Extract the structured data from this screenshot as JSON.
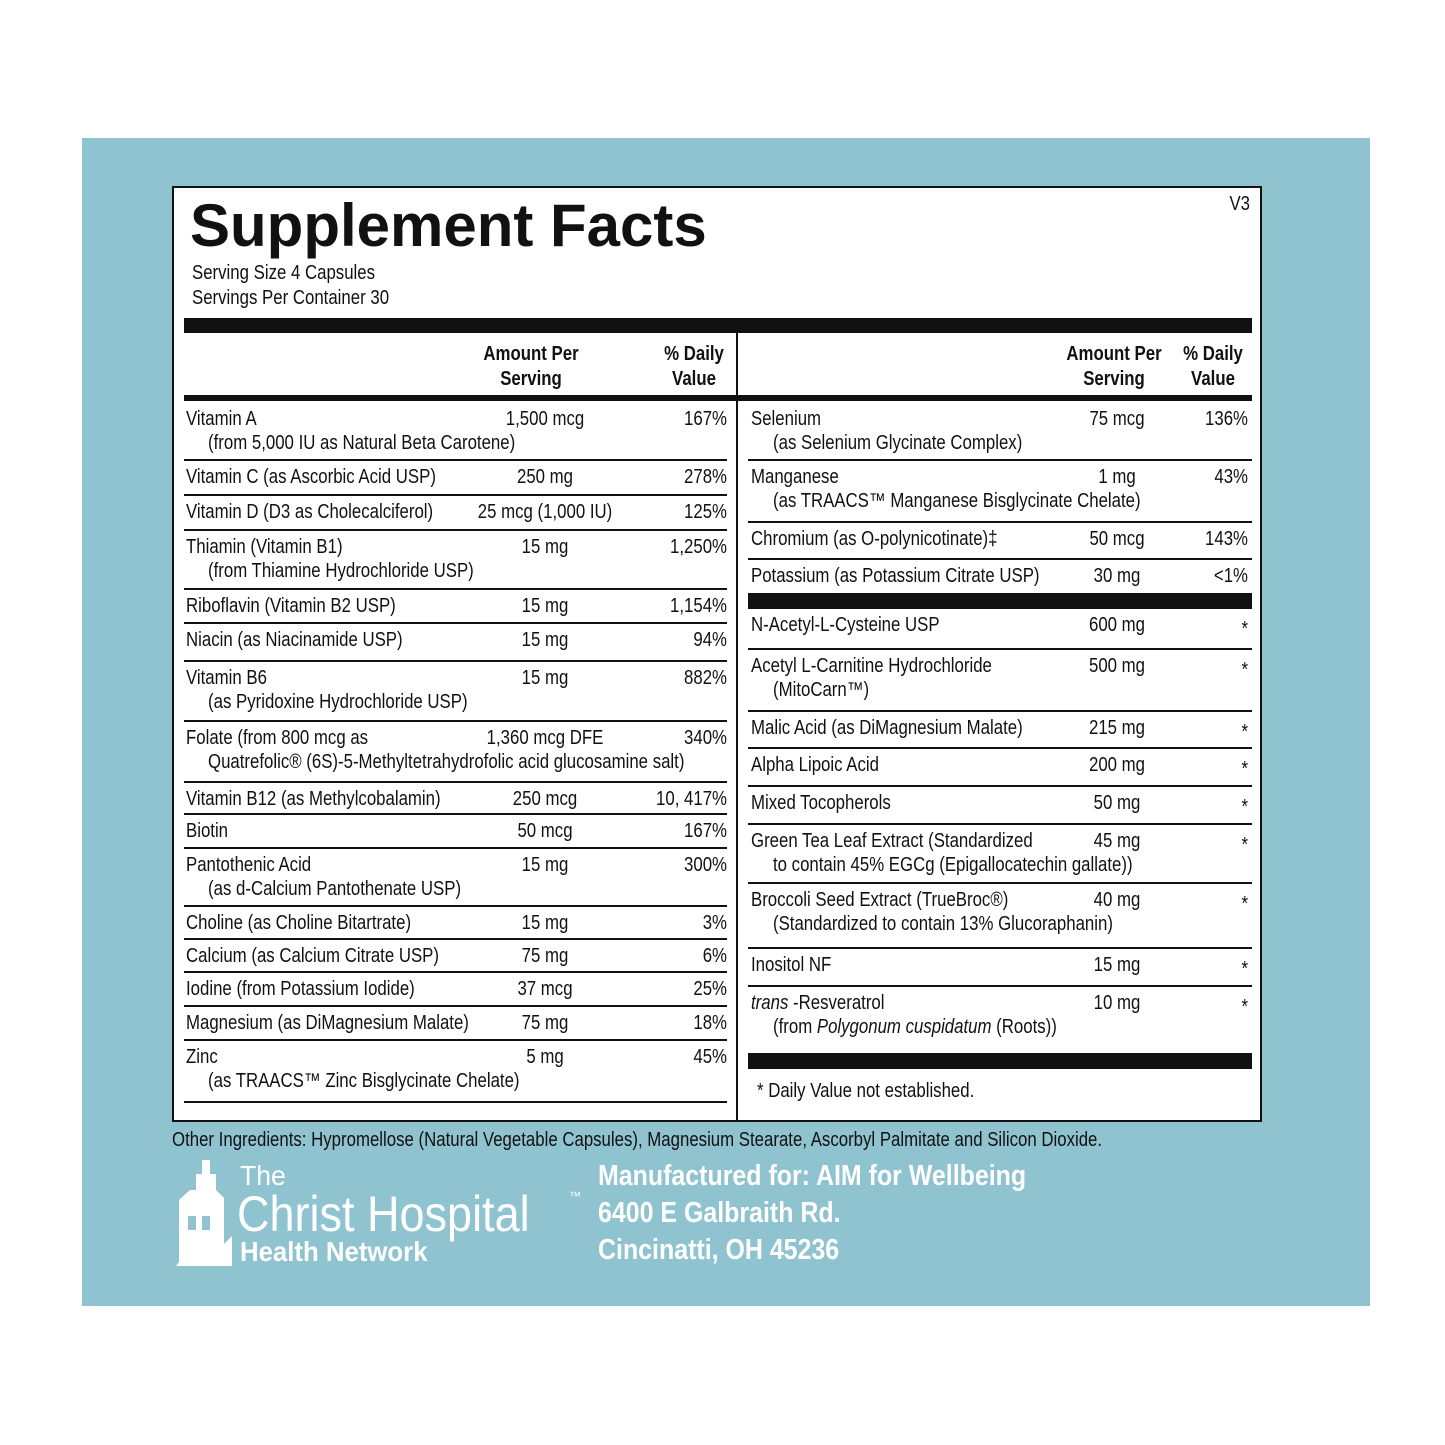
{
  "title": "Supplement Facts",
  "version": "V3",
  "serving_info": [
    "Serving Size  4 Capsules",
    "Servings Per Container  30"
  ],
  "left_header": {
    "amount": [
      "Amount Per",
      "Serving"
    ],
    "dv": [
      "% Daily",
      "Value"
    ]
  },
  "right_header": {
    "amount": [
      "Amount Per",
      "Serving"
    ],
    "dv": [
      "% Daily",
      "Value"
    ]
  },
  "left_rows": [
    {
      "name": "Vitamin A",
      "sub": "(from 5,000 IU as Natural Beta Carotene)",
      "amount": "1,500 mcg",
      "dv": "167%"
    },
    {
      "name": "Vitamin C (as Ascorbic Acid USP)",
      "amount": "250 mg",
      "dv": "278%"
    },
    {
      "name": "Vitamin D (D3 as Cholecalciferol)",
      "amount": "25 mcg (1,000 IU)",
      "dv": "125%"
    },
    {
      "name": "Thiamin (Vitamin B1)",
      "sub": "(from Thiamine Hydrochloride USP)",
      "amount": "15 mg",
      "dv": "1,250%"
    },
    {
      "name": "Riboflavin (Vitamin B2 USP)",
      "amount": "15 mg",
      "dv": "1,154%"
    },
    {
      "name": "Niacin (as Niacinamide USP)",
      "amount": "15 mg",
      "dv": "94%"
    },
    {
      "name": "Vitamin B6",
      "sub": "(as Pyridoxine Hydrochloride USP)",
      "amount": "15 mg",
      "dv": "882%"
    },
    {
      "name": "Folate (from 800 mcg as",
      "sub": "Quatrefolic® (6S)-5-Methyltetrahydrofolic acid glucosamine salt)",
      "amount": "1,360 mcg DFE",
      "dv": "340%"
    },
    {
      "name": "Vitamin B12 (as Methylcobalamin)",
      "amount": "250 mcg",
      "dv": "10, 417%"
    },
    {
      "name": "Biotin",
      "amount": "50 mcg",
      "dv": "167%"
    },
    {
      "name": "Pantothenic Acid",
      "sub": "(as d-Calcium Pantothenate USP)",
      "amount": "15 mg",
      "dv": "300%"
    },
    {
      "name": "Choline (as Choline Bitartrate)",
      "amount": "15 mg",
      "dv": "3%"
    },
    {
      "name": "Calcium (as Calcium Citrate USP)",
      "amount": "75 mg",
      "dv": "6%"
    },
    {
      "name": "Iodine (from Potassium Iodide)",
      "amount": "37 mcg",
      "dv": "25%"
    },
    {
      "name": "Magnesium (as DiMagnesium Malate)",
      "amount": "75 mg",
      "dv": "18%"
    },
    {
      "name": "Zinc",
      "sub": "(as TRAACS™ Zinc Bisglycinate Chelate)",
      "amount": "5 mg",
      "dv": "45%"
    }
  ],
  "right_sections": [
    {
      "rows": [
        {
          "name": "Selenium",
          "sub": "(as Selenium Glycinate Complex)",
          "amount": "75 mcg",
          "dv": "136%"
        },
        {
          "name": "Manganese",
          "sub": "(as TRAACS™ Manganese Bisglycinate Chelate)",
          "amount": "1 mg",
          "dv": "43%"
        },
        {
          "name": "Chromium (as O-polynicotinate)‡",
          "amount": "50 mcg",
          "dv": "143%"
        },
        {
          "name": "Potassium (as Potassium Citrate USP)",
          "amount": "30 mg",
          "dv": "<1%"
        }
      ]
    },
    {
      "rows": [
        {
          "name": "N-Acetyl-L-Cysteine USP",
          "amount": "600 mg",
          "dv": "*"
        },
        {
          "name": "Acetyl L-Carnitine Hydrochloride",
          "sub": "(MitoCarn™)",
          "amount": "500 mg",
          "dv": "*"
        },
        {
          "name": "Malic Acid (as DiMagnesium Malate)",
          "amount": "215 mg",
          "dv": "*"
        },
        {
          "name": "Alpha Lipoic Acid",
          "amount": "200 mg",
          "dv": "*"
        },
        {
          "name": "Mixed Tocopherols",
          "amount": "50 mg",
          "dv": "*"
        },
        {
          "name": "Green Tea Leaf Extract  (Standardized",
          "sub": "to contain 45% EGCg (Epigallocatechin gallate))",
          "amount": "45 mg",
          "dv": "*"
        },
        {
          "name": "Broccoli Seed Extract (TrueBroc®)",
          "sub": "(Standardized to contain 13% Glucoraphanin)",
          "amount": "40 mg",
          "dv": "*"
        },
        {
          "name": "Inositol NF",
          "amount": "15 mg",
          "dv": "*"
        },
        {
          "name": [
            {
              "text": "trans",
              "italic": true
            },
            {
              "text": " -Resveratrol"
            }
          ],
          "sub": [
            {
              "text": "(from "
            },
            {
              "text": "Polygonum cuspidatum",
              "italic": true
            },
            {
              "text": " (Roots))"
            }
          ],
          "amount": "10 mg",
          "dv": "*"
        }
      ]
    }
  ],
  "footnote": "*  Daily Value not established.",
  "other_ingredients": "Other Ingredients: Hypromellose (Natural Vegetable Capsules), Magnesium Stearate, Ascorbyl Palmitate and Silicon Dioxide.",
  "logo": {
    "line1": "The",
    "line2": "Christ Hospital",
    "mark": "™",
    "line3": "Health Network"
  },
  "manufacturer": [
    "Manufactured for: AIM for Wellbeing",
    "6400 E Galbraith Rd.",
    "Cincinatti, OH 45236"
  ]
}
